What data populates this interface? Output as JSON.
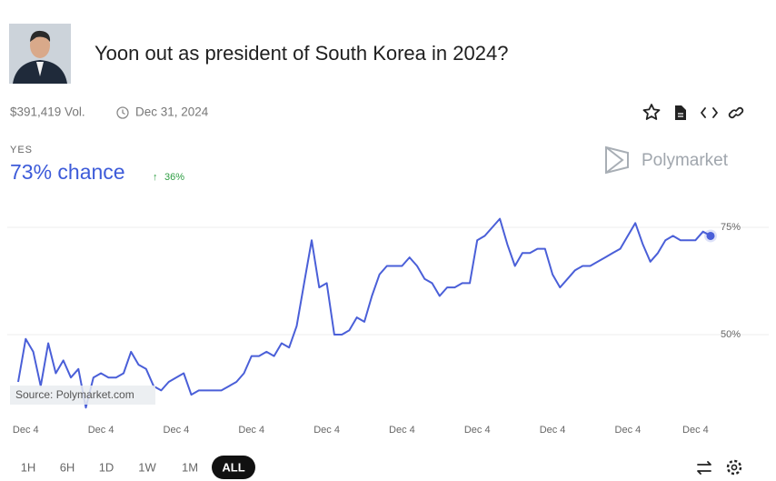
{
  "header": {
    "title": "Yoon out as president of South Korea in 2024?",
    "volume": "$391,419 Vol.",
    "end_date": "Dec 31, 2024"
  },
  "outcome": {
    "label": "YES",
    "chance": "73% chance",
    "change": "36%"
  },
  "brand": "Polymarket",
  "source": "Source: Polymarket.com",
  "time_ranges": [
    "1H",
    "6H",
    "1D",
    "1W",
    "1M",
    "ALL"
  ],
  "active_range": "ALL",
  "chart_data": {
    "type": "line",
    "color": "#4a5fd8",
    "categories": [
      null,
      "Dec 4",
      null,
      null,
      null,
      null,
      null,
      null,
      null,
      null,
      null,
      "Dec 4",
      null,
      null,
      null,
      null,
      null,
      null,
      null,
      null,
      null,
      "Dec 4",
      null,
      null,
      null,
      null,
      null,
      null,
      null,
      null,
      null,
      "Dec 4",
      null,
      null,
      null,
      null,
      null,
      null,
      null,
      null,
      null,
      "Dec 4",
      null,
      null,
      null,
      null,
      null,
      null,
      null,
      null,
      null,
      "Dec 4",
      null,
      null,
      null,
      null,
      null,
      null,
      null,
      null,
      null,
      "Dec 4",
      null,
      null,
      null,
      null,
      null,
      null,
      null,
      null,
      null,
      "Dec 4",
      null,
      null,
      null,
      null,
      null,
      null,
      null,
      null,
      null,
      "Dec 4",
      null,
      null,
      null,
      null,
      null,
      null,
      null,
      null,
      "Dec 4",
      null,
      null
    ],
    "values": [
      39,
      49,
      46,
      38,
      48,
      41,
      44,
      40,
      42,
      33,
      40,
      41,
      40,
      40,
      41,
      46,
      43,
      42,
      38,
      37,
      39,
      40,
      41,
      36,
      37,
      37,
      37,
      37,
      38,
      39,
      41,
      45,
      45,
      46,
      45,
      48,
      47,
      52,
      62,
      72,
      61,
      62,
      50,
      50,
      51,
      54,
      53,
      59,
      64,
      66,
      66,
      66,
      68,
      66,
      63,
      62,
      59,
      61,
      61,
      62,
      62,
      72,
      73,
      75,
      77,
      71,
      66,
      69,
      69,
      70,
      70,
      64,
      61,
      63,
      65,
      66,
      66,
      67,
      68,
      69,
      70,
      73,
      76,
      71,
      67,
      69,
      72,
      73,
      72,
      72,
      72,
      74,
      73
    ],
    "ylim": [
      32,
      80
    ],
    "yticks": [
      {
        "value": 50,
        "label": "50%"
      },
      {
        "value": 75,
        "label": "75%"
      }
    ],
    "grid": true
  }
}
